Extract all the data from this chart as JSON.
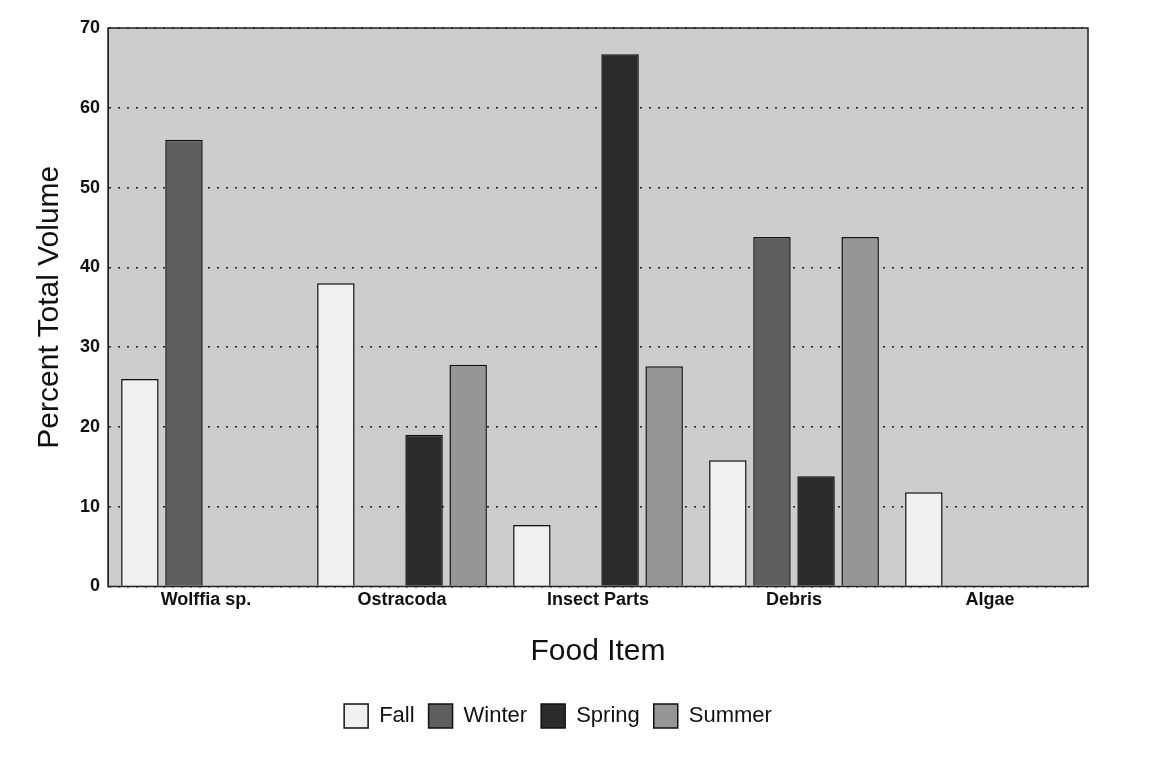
{
  "chart_data": {
    "type": "bar",
    "xlabel": "Food Item",
    "ylabel": "Percent Total Volume",
    "categories": [
      "Wolffia sp.",
      "Ostracoda",
      "Insect Parts",
      "Debris",
      "Algae"
    ],
    "series": [
      {
        "name": "Fall",
        "color": "#f0f0f0",
        "values": [
          26,
          38,
          7.7,
          15.8,
          11.8
        ]
      },
      {
        "name": "Winter",
        "color": "#5e5e5e",
        "values": [
          56,
          null,
          null,
          43.8,
          null
        ]
      },
      {
        "name": "Spring",
        "color": "#2b2b2b",
        "values": [
          null,
          19,
          66.7,
          13.8,
          null
        ]
      },
      {
        "name": "Summer",
        "color": "#969696",
        "values": [
          null,
          27.8,
          27.6,
          43.8,
          null
        ]
      }
    ],
    "ylim": [
      0,
      70
    ],
    "yticks": [
      0,
      10,
      20,
      30,
      40,
      50,
      60,
      70
    ],
    "grid": "y",
    "legend": "bottom"
  }
}
